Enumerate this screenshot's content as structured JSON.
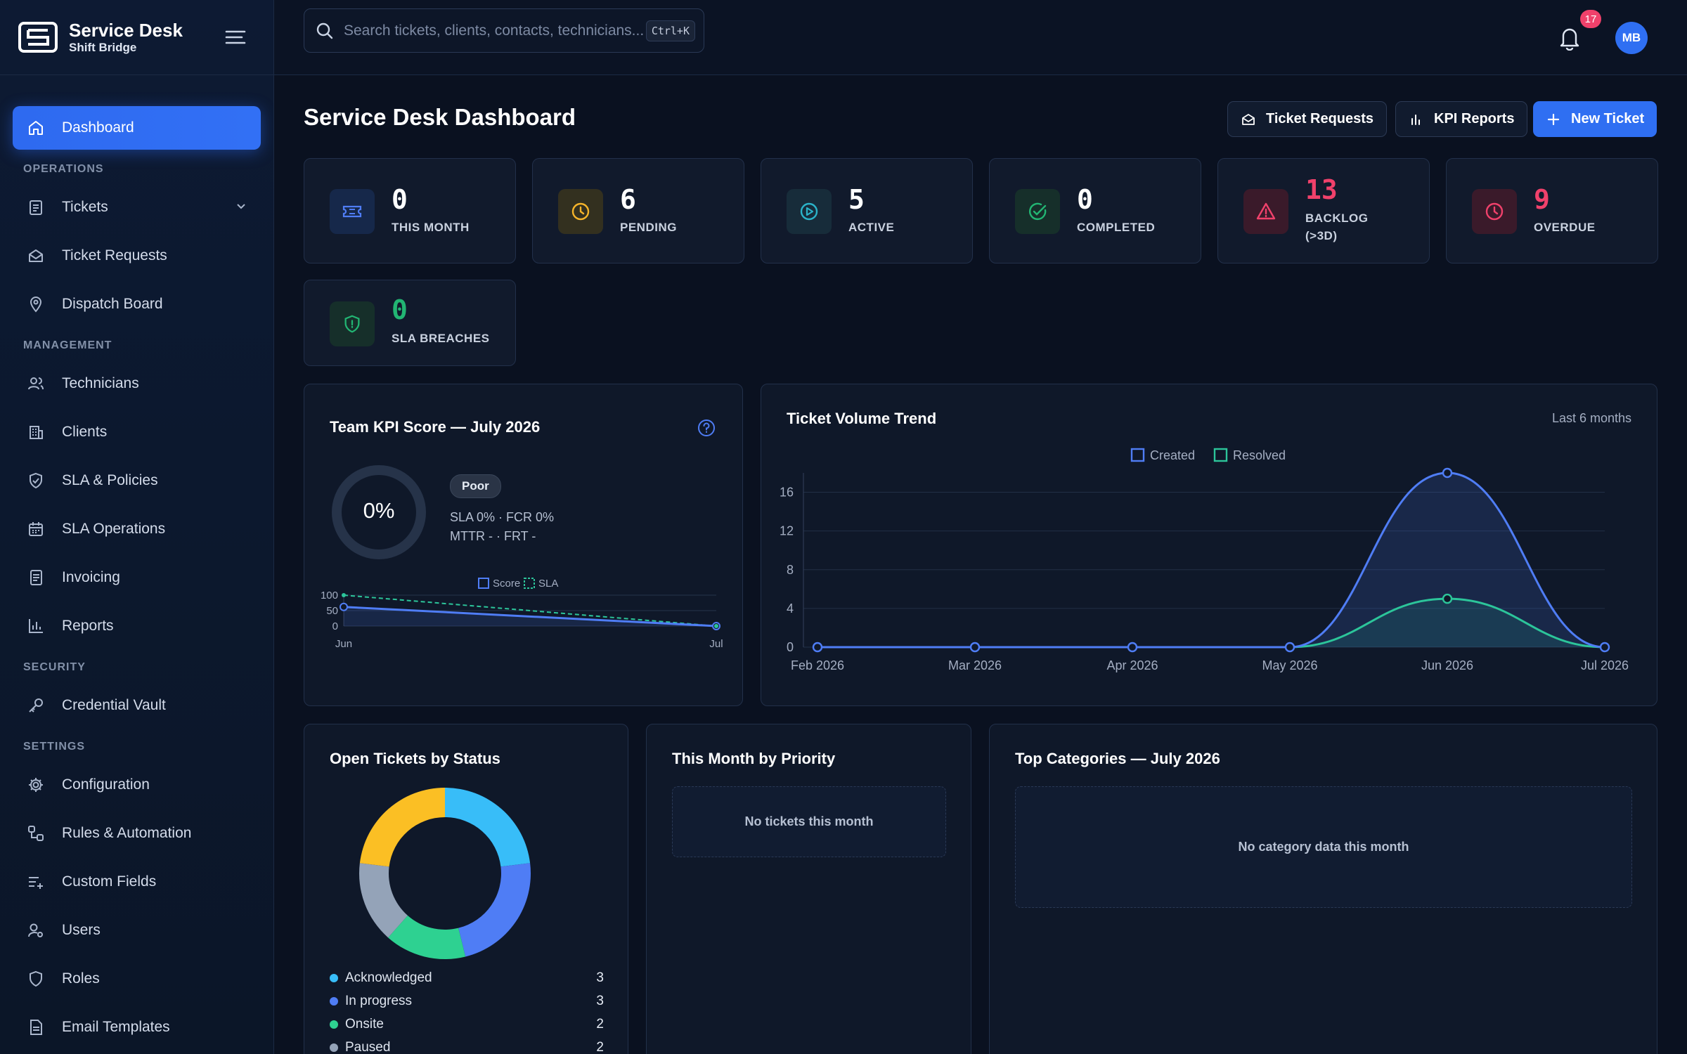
{
  "brand": {
    "title": "Service Desk",
    "subtitle": "Shift Bridge"
  },
  "sidebar": {
    "dashboard": "Dashboard",
    "sections": {
      "operations": "OPERATIONS",
      "management": "MANAGEMENT",
      "security": "SECURITY",
      "settings": "SETTINGS"
    },
    "items": {
      "tickets": "Tickets",
      "ticket_requests": "Ticket Requests",
      "dispatch_board": "Dispatch Board",
      "technicians": "Technicians",
      "clients": "Clients",
      "sla_policies": "SLA & Policies",
      "sla_operations": "SLA Operations",
      "invoicing": "Invoicing",
      "reports": "Reports",
      "credential_vault": "Credential Vault",
      "configuration": "Configuration",
      "rules_automation": "Rules & Automation",
      "custom_fields": "Custom Fields",
      "users": "Users",
      "roles": "Roles",
      "email_templates": "Email Templates"
    }
  },
  "topbar": {
    "search_placeholder": "Search tickets, clients, contacts, technicians...",
    "shortcut": "Ctrl+K",
    "notifications": "17",
    "avatar": "MB"
  },
  "header": {
    "title": "Service Desk Dashboard",
    "ticket_requests": "Ticket Requests",
    "kpi_reports": "KPI Reports",
    "new_ticket": "New Ticket"
  },
  "stats": {
    "this_month": {
      "value": "0",
      "label": "THIS MONTH"
    },
    "pending": {
      "value": "6",
      "label": "PENDING"
    },
    "active": {
      "value": "5",
      "label": "ACTIVE"
    },
    "completed": {
      "value": "0",
      "label": "COMPLETED"
    },
    "backlog": {
      "value": "13",
      "label1": "BACKLOG",
      "label2": "(>3D)"
    },
    "overdue": {
      "value": "9",
      "label": "OVERDUE"
    },
    "sla_breaches": {
      "value": "0",
      "label": "SLA BREACHES"
    }
  },
  "kpi": {
    "title": "Team KPI Score — July 2026",
    "score": "0%",
    "rating": "Poor",
    "line1": "SLA 0% · FCR 0%",
    "line2": "MTTR - · FRT -"
  },
  "colors": {
    "accent": "#2f6ff2",
    "created": "#4f7df5",
    "resolved": "#2cc59a",
    "warning": "#f5b42a",
    "danger": "#f0416b",
    "success": "#22b573"
  },
  "chart_data": [
    {
      "type": "line",
      "title": "",
      "x": [
        "Jun",
        "Jul"
      ],
      "series": [
        {
          "name": "Score",
          "values": [
            62,
            0
          ]
        },
        {
          "name": "SLA",
          "values": [
            100,
            0
          ]
        }
      ],
      "ylim": [
        0,
        100
      ],
      "yticks": [
        "0",
        "50",
        "100"
      ]
    },
    {
      "type": "area",
      "title": "Ticket Volume Trend",
      "subtitle": "Last 6 months",
      "x": [
        "Feb 2026",
        "Mar 2026",
        "Apr 2026",
        "May 2026",
        "Jun 2026",
        "Jul 2026"
      ],
      "series": [
        {
          "name": "Created",
          "values": [
            0,
            0,
            0,
            0,
            18,
            0
          ]
        },
        {
          "name": "Resolved",
          "values": [
            0,
            0,
            0,
            0,
            5,
            0
          ]
        }
      ],
      "ylim": [
        0,
        18
      ],
      "yticks": [
        "0",
        "4",
        "8",
        "12",
        "16"
      ],
      "legend": "top-center"
    },
    {
      "type": "pie",
      "title": "Open Tickets by Status",
      "slices": [
        {
          "label": "Acknowledged",
          "value": 3,
          "color": "#38bdf8"
        },
        {
          "label": "In progress",
          "value": 3,
          "color": "#4f7df5"
        },
        {
          "label": "Onsite",
          "value": 2,
          "color": "#2ed191"
        },
        {
          "label": "Paused",
          "value": 2,
          "color": "#94a3b8"
        },
        {
          "label": "",
          "value": 3,
          "color": "#fbbf24"
        }
      ]
    }
  ],
  "priority": {
    "title": "This Month by Priority",
    "empty": "No tickets this month"
  },
  "categories": {
    "title": "Top Categories — July 2026",
    "empty": "No category data this month"
  }
}
